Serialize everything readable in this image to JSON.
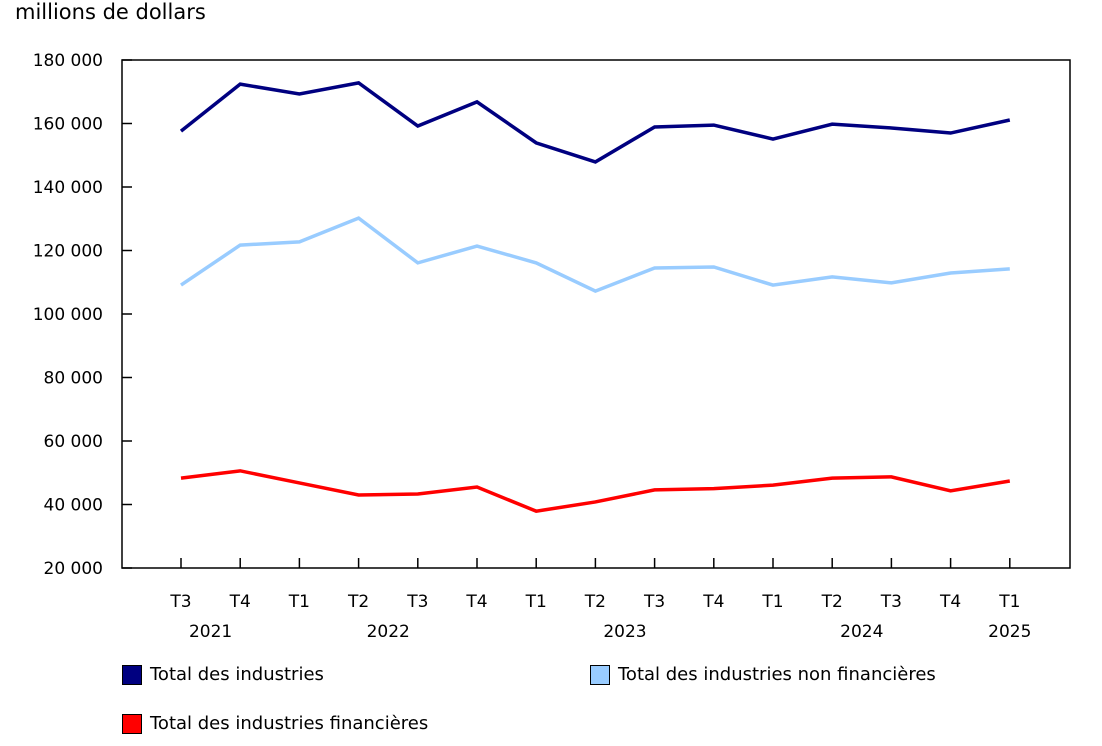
{
  "chart_data": {
    "type": "line",
    "ylabel": "millions de dollars",
    "ylim": [
      20000,
      180000
    ],
    "yticks": [
      "20 000",
      "40 000",
      "60 000",
      "80 000",
      "100 000",
      "120 000",
      "140 000",
      "160 000",
      "180 000"
    ],
    "yticks_values": [
      20000,
      40000,
      60000,
      80000,
      100000,
      120000,
      140000,
      160000,
      180000
    ],
    "categories": [
      "T3",
      "T4",
      "T1",
      "T2",
      "T3",
      "T4",
      "T1",
      "T2",
      "T3",
      "T4",
      "T1",
      "T2",
      "T3",
      "T4",
      "T1"
    ],
    "years": [
      {
        "label": "2021",
        "index": 0.5
      },
      {
        "label": "2022",
        "index": 3.5
      },
      {
        "label": "2023",
        "index": 7.5
      },
      {
        "label": "2024",
        "index": 11.5
      },
      {
        "label": "2025",
        "index": 14
      }
    ],
    "grid": false,
    "legend_position": "bottom",
    "series": [
      {
        "name": "Total des industries",
        "color": "#000080",
        "values": [
          157600,
          172400,
          169300,
          172800,
          159200,
          166800,
          153900,
          147900,
          158900,
          159500,
          155100,
          159800,
          158600,
          157000,
          161100
        ]
      },
      {
        "name": "Total des industries non financières",
        "color": "#99ccff",
        "values": [
          109100,
          121700,
          122700,
          130200,
          116100,
          121400,
          116100,
          107200,
          114500,
          114800,
          109100,
          111700,
          109800,
          112900,
          114200
        ]
      },
      {
        "name": "Total des industries financières",
        "color": "#ff0000",
        "values": [
          48300,
          50600,
          46800,
          43000,
          43300,
          45500,
          37900,
          40800,
          44600,
          45000,
          46100,
          48300,
          48700,
          44300,
          47400
        ]
      }
    ]
  }
}
